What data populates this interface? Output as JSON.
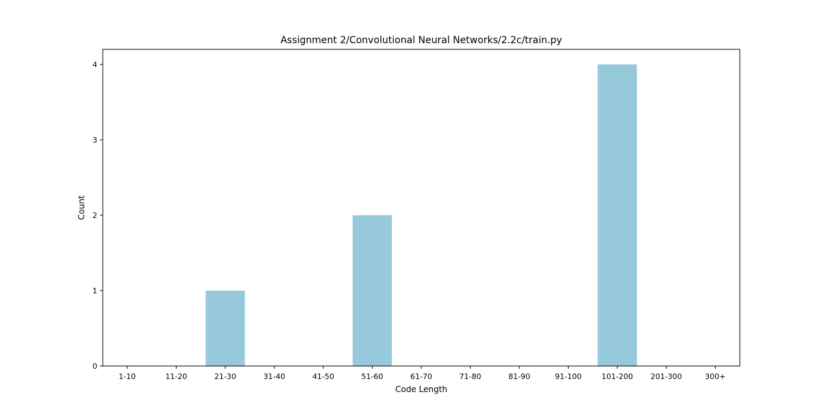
{
  "chart_data": {
    "type": "bar",
    "title": "Assignment 2/Convolutional Neural Networks/2.2c/train.py",
    "xlabel": "Code Length",
    "ylabel": "Count",
    "categories": [
      "1-10",
      "11-20",
      "21-30",
      "31-40",
      "41-50",
      "51-60",
      "61-70",
      "71-80",
      "81-90",
      "91-100",
      "101-200",
      "201-300",
      "300+"
    ],
    "values": [
      0,
      0,
      1,
      0,
      0,
      2,
      0,
      0,
      0,
      0,
      4,
      0,
      0
    ],
    "ylim": [
      0,
      4.2
    ],
    "yticks": [
      "0",
      "1",
      "2",
      "3",
      "4"
    ],
    "bar_color": "#96c9dc",
    "grid": false,
    "legend": "none"
  }
}
